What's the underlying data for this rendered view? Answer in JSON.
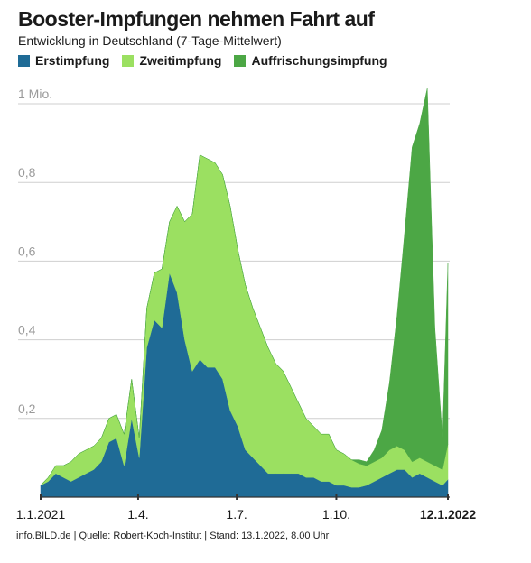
{
  "title": "Booster-Impfungen nehmen Fahrt auf",
  "subtitle": "Entwicklung in Deutschland (7-Tage-Mittelwert)",
  "footer": "info.BILD.de | Quelle: Robert-Koch-Institut | Stand: 13.1.2022, 8.00 Uhr",
  "colors": {
    "erst": "#1f6b96",
    "zweit": "#9be061",
    "auff": "#4ca745",
    "grid": "#cfcfcf",
    "axis": "#333333",
    "ticklabel": "#9a9a9a"
  },
  "chart_data": {
    "type": "area",
    "stacked": true,
    "ylim": [
      0,
      1.0
    ],
    "y_ticks": [
      {
        "value": 0.2,
        "label": "0,2"
      },
      {
        "value": 0.4,
        "label": "0,4"
      },
      {
        "value": 0.6,
        "label": "0,6"
      },
      {
        "value": 0.8,
        "label": "0,8"
      },
      {
        "value": 1.0,
        "label": "1 Mio."
      }
    ],
    "x_ticks": [
      {
        "date": "2021-01-01",
        "label": "1.1.2021",
        "bold": false
      },
      {
        "date": "2021-04-01",
        "label": "1.4.",
        "bold": false
      },
      {
        "date": "2021-07-01",
        "label": "1.7.",
        "bold": false
      },
      {
        "date": "2021-10-01",
        "label": "1.10.",
        "bold": false
      },
      {
        "date": "2022-01-12",
        "label": "12.1.2022",
        "bold": true
      }
    ],
    "x": [
      "2021-01-01",
      "2021-01-08",
      "2021-01-15",
      "2021-01-22",
      "2021-01-29",
      "2021-02-05",
      "2021-02-12",
      "2021-02-19",
      "2021-02-26",
      "2021-03-05",
      "2021-03-12",
      "2021-03-19",
      "2021-03-26",
      "2021-04-02",
      "2021-04-09",
      "2021-04-16",
      "2021-04-23",
      "2021-04-30",
      "2021-05-07",
      "2021-05-14",
      "2021-05-21",
      "2021-05-28",
      "2021-06-04",
      "2021-06-11",
      "2021-06-18",
      "2021-06-25",
      "2021-07-02",
      "2021-07-09",
      "2021-07-16",
      "2021-07-23",
      "2021-07-30",
      "2021-08-06",
      "2021-08-13",
      "2021-08-20",
      "2021-08-27",
      "2021-09-03",
      "2021-09-10",
      "2021-09-17",
      "2021-09-24",
      "2021-10-01",
      "2021-10-08",
      "2021-10-15",
      "2021-10-22",
      "2021-10-29",
      "2021-11-05",
      "2021-11-12",
      "2021-11-19",
      "2021-11-26",
      "2021-12-03",
      "2021-12-10",
      "2021-12-17",
      "2021-12-24",
      "2021-12-31",
      "2022-01-07",
      "2022-01-12"
    ],
    "series": [
      {
        "name": "Erstimpfung",
        "key": "erst",
        "values": [
          0.03,
          0.04,
          0.06,
          0.05,
          0.04,
          0.05,
          0.06,
          0.07,
          0.09,
          0.14,
          0.15,
          0.08,
          0.2,
          0.1,
          0.38,
          0.45,
          0.43,
          0.57,
          0.52,
          0.4,
          0.32,
          0.35,
          0.33,
          0.33,
          0.3,
          0.22,
          0.18,
          0.12,
          0.1,
          0.08,
          0.06,
          0.06,
          0.06,
          0.06,
          0.06,
          0.05,
          0.05,
          0.04,
          0.04,
          0.03,
          0.03,
          0.025,
          0.025,
          0.03,
          0.04,
          0.05,
          0.06,
          0.07,
          0.07,
          0.05,
          0.06,
          0.05,
          0.04,
          0.03,
          0.045
        ]
      },
      {
        "name": "Zweitimpfung",
        "key": "zweit",
        "values": [
          0.0,
          0.01,
          0.02,
          0.03,
          0.05,
          0.06,
          0.06,
          0.06,
          0.06,
          0.06,
          0.06,
          0.08,
          0.1,
          0.05,
          0.1,
          0.12,
          0.15,
          0.13,
          0.22,
          0.3,
          0.4,
          0.52,
          0.53,
          0.52,
          0.52,
          0.52,
          0.45,
          0.42,
          0.38,
          0.35,
          0.32,
          0.28,
          0.26,
          0.22,
          0.18,
          0.15,
          0.13,
          0.12,
          0.12,
          0.09,
          0.08,
          0.07,
          0.06,
          0.05,
          0.05,
          0.05,
          0.06,
          0.06,
          0.05,
          0.04,
          0.04,
          0.04,
          0.04,
          0.04,
          0.09
        ]
      },
      {
        "name": "Auffrischungsimpfung",
        "key": "auff",
        "values": [
          0,
          0,
          0,
          0,
          0,
          0,
          0,
          0,
          0,
          0,
          0,
          0,
          0,
          0,
          0,
          0,
          0,
          0,
          0,
          0,
          0,
          0,
          0,
          0,
          0,
          0,
          0,
          0,
          0,
          0,
          0,
          0,
          0,
          0,
          0,
          0,
          0,
          0,
          0,
          0,
          0,
          0,
          0.01,
          0.01,
          0.03,
          0.07,
          0.17,
          0.33,
          0.55,
          0.8,
          0.85,
          0.95,
          0.35,
          0.08,
          0.46
        ]
      }
    ]
  }
}
